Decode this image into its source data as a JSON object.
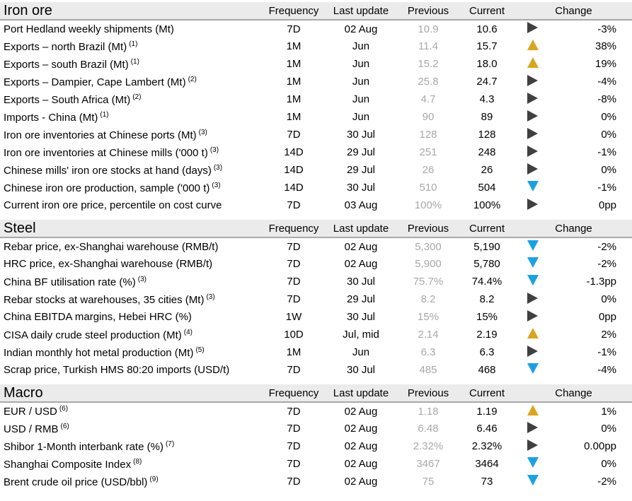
{
  "columns": {
    "frequency": "Frequency",
    "last_update": "Last update",
    "previous": "Previous",
    "current": "Current",
    "change": "Change"
  },
  "colors": {
    "up": "#d9a520",
    "down": "#1ba1e2",
    "flat": "#404040"
  },
  "sections": [
    {
      "title": "Iron ore",
      "rows": [
        {
          "label": "Port Hedland weekly shipments (Mt)",
          "note": "",
          "freq": "7D",
          "last": "02 Aug",
          "prev": "10.9",
          "curr": "10.6",
          "dir": "right",
          "change": "-3%"
        },
        {
          "label": "Exports – north Brazil (Mt)",
          "note": "(1)",
          "freq": "1M",
          "last": "Jun",
          "prev": "11.4",
          "curr": "15.7",
          "dir": "up",
          "change": "38%"
        },
        {
          "label": "Exports – south Brazil (Mt)",
          "note": "(1)",
          "freq": "1M",
          "last": "Jun",
          "prev": "15.2",
          "curr": "18.0",
          "dir": "up",
          "change": "19%"
        },
        {
          "label": "Exports – Dampier, Cape Lambert (Mt)",
          "note": "(2)",
          "freq": "1M",
          "last": "Jun",
          "prev": "25.8",
          "curr": "24.7",
          "dir": "right",
          "change": "-4%"
        },
        {
          "label": "Exports – South Africa (Mt)",
          "note": "(2)",
          "freq": "1M",
          "last": "Jun",
          "prev": "4.7",
          "curr": "4.3",
          "dir": "right",
          "change": "-8%"
        },
        {
          "label": "Imports - China (Mt)",
          "note": "(1)",
          "freq": "1M",
          "last": "Jun",
          "prev": "90",
          "curr": "89",
          "dir": "right",
          "change": "0%"
        },
        {
          "label": "Iron ore inventories at Chinese ports (Mt)",
          "note": "(3)",
          "freq": "7D",
          "last": "30 Jul",
          "prev": "128",
          "curr": "128",
          "dir": "right",
          "change": "0%"
        },
        {
          "label": "Iron ore inventories at Chinese mills ('000 t)",
          "note": "(3)",
          "freq": "14D",
          "last": "29 Jul",
          "prev": "251",
          "curr": "248",
          "dir": "right",
          "change": "-1%"
        },
        {
          "label": "Chinese mills' iron ore stocks at hand (days)",
          "note": "(3)",
          "freq": "14D",
          "last": "29 Jul",
          "prev": "26",
          "curr": "26",
          "dir": "right",
          "change": "0%"
        },
        {
          "label": "Chinese iron ore production, sample ('000 t)",
          "note": "(3)",
          "freq": "14D",
          "last": "30 Jul",
          "prev": "510",
          "curr": "504",
          "dir": "down",
          "change": "-1%"
        },
        {
          "label": "Current iron ore price, percentile on cost curve",
          "note": "",
          "freq": "7D",
          "last": "03 Aug",
          "prev": "100%",
          "curr": "100%",
          "dir": "right",
          "change": "0pp"
        }
      ]
    },
    {
      "title": "Steel",
      "rows": [
        {
          "label": "Rebar price, ex-Shanghai warehouse (RMB/t)",
          "note": "",
          "freq": "7D",
          "last": "02 Aug",
          "prev": "5,300",
          "curr": "5,190",
          "dir": "down",
          "change": "-2%"
        },
        {
          "label": "HRC price, ex-Shanghai warehouse (RMB/t)",
          "note": "",
          "freq": "7D",
          "last": "02 Aug",
          "prev": "5,900",
          "curr": "5,780",
          "dir": "down",
          "change": "-2%"
        },
        {
          "label": "China BF utilisation rate (%)",
          "note": "(3)",
          "freq": "7D",
          "last": "30 Jul",
          "prev": "75.7%",
          "curr": "74.4%",
          "dir": "down",
          "change": "-1.3pp"
        },
        {
          "label": "Rebar stocks at warehouses, 35 cities (Mt)",
          "note": "(3)",
          "freq": "7D",
          "last": "29 Jul",
          "prev": "8.2",
          "curr": "8.2",
          "dir": "right",
          "change": "0%"
        },
        {
          "label": "China EBITDA margins, Hebei HRC (%)",
          "note": "",
          "freq": "1W",
          "last": "30 Jul",
          "prev": "15%",
          "curr": "15%",
          "dir": "right",
          "change": "0pp"
        },
        {
          "label": "CISA daily crude steel production (Mt)",
          "note": "(4)",
          "freq": "10D",
          "last": "Jul, mid",
          "prev": "2.14",
          "curr": "2.19",
          "dir": "up",
          "change": "2%"
        },
        {
          "label": "Indian monthly hot metal production (Mt)",
          "note": "(5)",
          "freq": "1M",
          "last": "Jun",
          "prev": "6.3",
          "curr": "6.3",
          "dir": "right",
          "change": "-1%"
        },
        {
          "label": "Scrap price, Turkish HMS 80:20 imports (USD/t)",
          "note": "",
          "freq": "7D",
          "last": "30 Jul",
          "prev": "485",
          "curr": "468",
          "dir": "down",
          "change": "-4%"
        }
      ]
    },
    {
      "title": "Macro",
      "rows": [
        {
          "label": "EUR / USD",
          "note": "(6)",
          "freq": "7D",
          "last": "02 Aug",
          "prev": "1.18",
          "curr": "1.19",
          "dir": "up",
          "change": "1%"
        },
        {
          "label": "USD / RMB",
          "note": "(6)",
          "freq": "7D",
          "last": "02 Aug",
          "prev": "6.48",
          "curr": "6.46",
          "dir": "right",
          "change": "0%"
        },
        {
          "label": "Shibor 1-Month interbank rate (%)",
          "note": "(7)",
          "freq": "7D",
          "last": "02 Aug",
          "prev": "2.32%",
          "curr": "2.32%",
          "dir": "right",
          "change": "0.00pp"
        },
        {
          "label": "Shanghai Composite Index",
          "note": "(8)",
          "freq": "7D",
          "last": "02 Aug",
          "prev": "3467",
          "curr": "3464",
          "dir": "down",
          "change": "0%"
        },
        {
          "label": "Brent crude oil price (USD/bbl)",
          "note": "(9)",
          "freq": "7D",
          "last": "02 Aug",
          "prev": "75",
          "curr": "73",
          "dir": "down",
          "change": "-2%"
        }
      ]
    }
  ]
}
